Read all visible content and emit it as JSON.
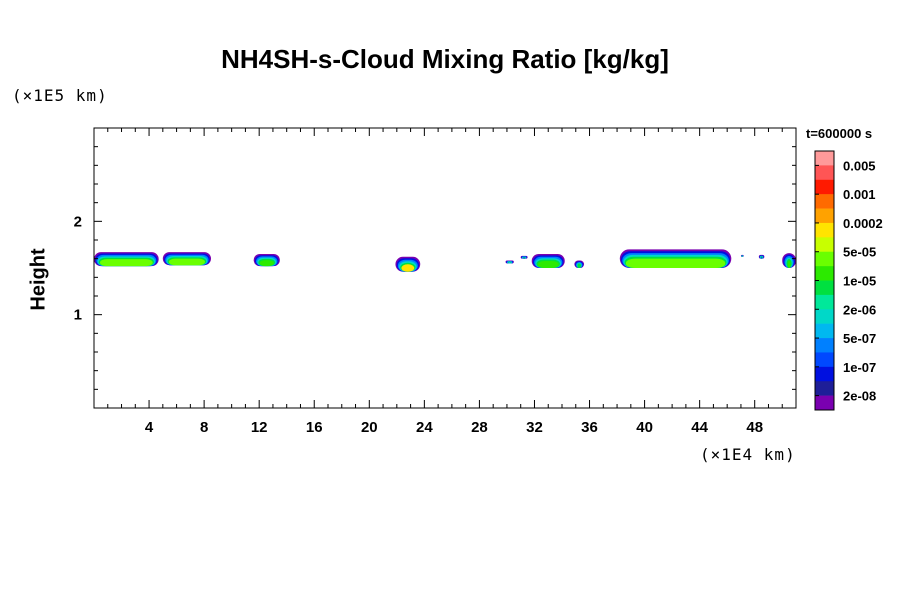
{
  "chart_data": {
    "type": "heatmap",
    "title": "NH4SH-s-Cloud Mixing Ratio [kg/kg]",
    "ylabel": "Height",
    "xlabel": "",
    "x_unit": "(×1E4 km)",
    "y_unit": "(×1E5 km)",
    "time_label": "t=600000 s",
    "xlim": [
      0,
      51
    ],
    "ylim": [
      0,
      3
    ],
    "x_ticks": [
      4,
      8,
      12,
      16,
      20,
      24,
      28,
      32,
      36,
      40,
      44,
      48
    ],
    "y_ticks": [
      1,
      2
    ],
    "colorbar": {
      "labels": [
        "0.005",
        "0.001",
        "0.0002",
        "5e-05",
        "1e-05",
        "2e-06",
        "5e-07",
        "1e-07",
        "2e-08"
      ],
      "colors": [
        "#ff9a9a",
        "#ff5555",
        "#ff1a00",
        "#ff6a00",
        "#ffa200",
        "#ffe400",
        "#c8ff00",
        "#6aff00",
        "#2cea00",
        "#00e040",
        "#00e89a",
        "#00d8c8",
        "#00b8f0",
        "#0080ff",
        "#0048ff",
        "#0010e0",
        "#1e1e98",
        "#7a00b0"
      ]
    },
    "cloud_patches": [
      {
        "x0": 0,
        "x1": 4.7,
        "ybase": 1.52,
        "ytop": 1.67,
        "core": "#6aff00"
      },
      {
        "x0": 5.0,
        "x1": 8.5,
        "ybase": 1.53,
        "ytop": 1.67,
        "core": "#6aff00"
      },
      {
        "x0": 11.6,
        "x1": 13.5,
        "ybase": 1.52,
        "ytop": 1.65,
        "core": "#2cea00"
      },
      {
        "x0": 21.9,
        "x1": 23.7,
        "ybase": 1.46,
        "ytop": 1.62,
        "core": "#ffe400"
      },
      {
        "x0": 29.9,
        "x1": 30.5,
        "ybase": 1.55,
        "ytop": 1.58,
        "core": "#00b8f0"
      },
      {
        "x0": 31.0,
        "x1": 31.5,
        "ybase": 1.6,
        "ytop": 1.63,
        "core": "#0048ff"
      },
      {
        "x0": 31.8,
        "x1": 34.2,
        "ybase": 1.5,
        "ytop": 1.65,
        "core": "#2cea00"
      },
      {
        "x0": 34.9,
        "x1": 35.6,
        "ybase": 1.5,
        "ytop": 1.58,
        "core": "#00e040"
      },
      {
        "x0": 38.2,
        "x1": 46.3,
        "ybase": 1.5,
        "ytop": 1.7,
        "core": "#6aff00"
      },
      {
        "x0": 47.0,
        "x1": 47.2,
        "ybase": 1.62,
        "ytop": 1.64,
        "core": "#00d8c8"
      },
      {
        "x0": 48.3,
        "x1": 48.7,
        "ybase": 1.6,
        "ytop": 1.64,
        "core": "#0048ff"
      },
      {
        "x0": 50.0,
        "x1": 51,
        "ybase": 1.5,
        "ytop": 1.66,
        "core": "#2cea00"
      }
    ]
  }
}
